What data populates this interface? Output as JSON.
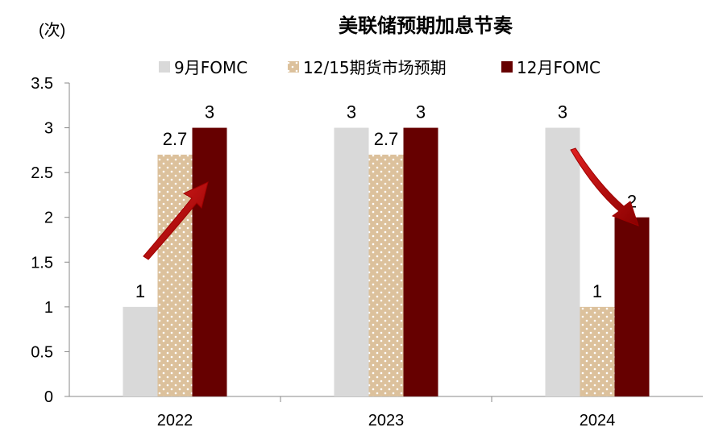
{
  "chart_data": {
    "type": "bar",
    "title": "美联储预期加息节奏",
    "ylabel": "(次)",
    "categories": [
      "2022",
      "2023",
      "2024"
    ],
    "ylim": [
      0,
      3.5
    ],
    "yticks": [
      "0",
      "0.5",
      "1",
      "1.5",
      "2",
      "2.5",
      "3",
      "3.5"
    ],
    "ytick_values": [
      0,
      0.5,
      1,
      1.5,
      2,
      2.5,
      3,
      3.5
    ],
    "legend_position": "top-center",
    "series": [
      {
        "name": "9月FOMC",
        "values": [
          1,
          3,
          3
        ],
        "labels": [
          "1",
          "3",
          "3"
        ],
        "color": "#d9d9d9",
        "pattern": "solid"
      },
      {
        "name": "12/15期货市场预期",
        "values": [
          2.7,
          2.7,
          1
        ],
        "labels": [
          "2.7",
          "2.7",
          "1"
        ],
        "color": "#dcc19c",
        "pattern": "dotted"
      },
      {
        "name": "12月FOMC",
        "values": [
          3,
          3,
          2
        ],
        "labels": [
          "3",
          "3",
          "2"
        ],
        "color": "#660000",
        "pattern": "solid"
      }
    ],
    "annotations": [
      {
        "type": "arrow",
        "direction": "up",
        "category": "2022",
        "color": "#c00000"
      },
      {
        "type": "arrow",
        "direction": "down",
        "category": "2024",
        "color": "#c00000"
      }
    ]
  }
}
